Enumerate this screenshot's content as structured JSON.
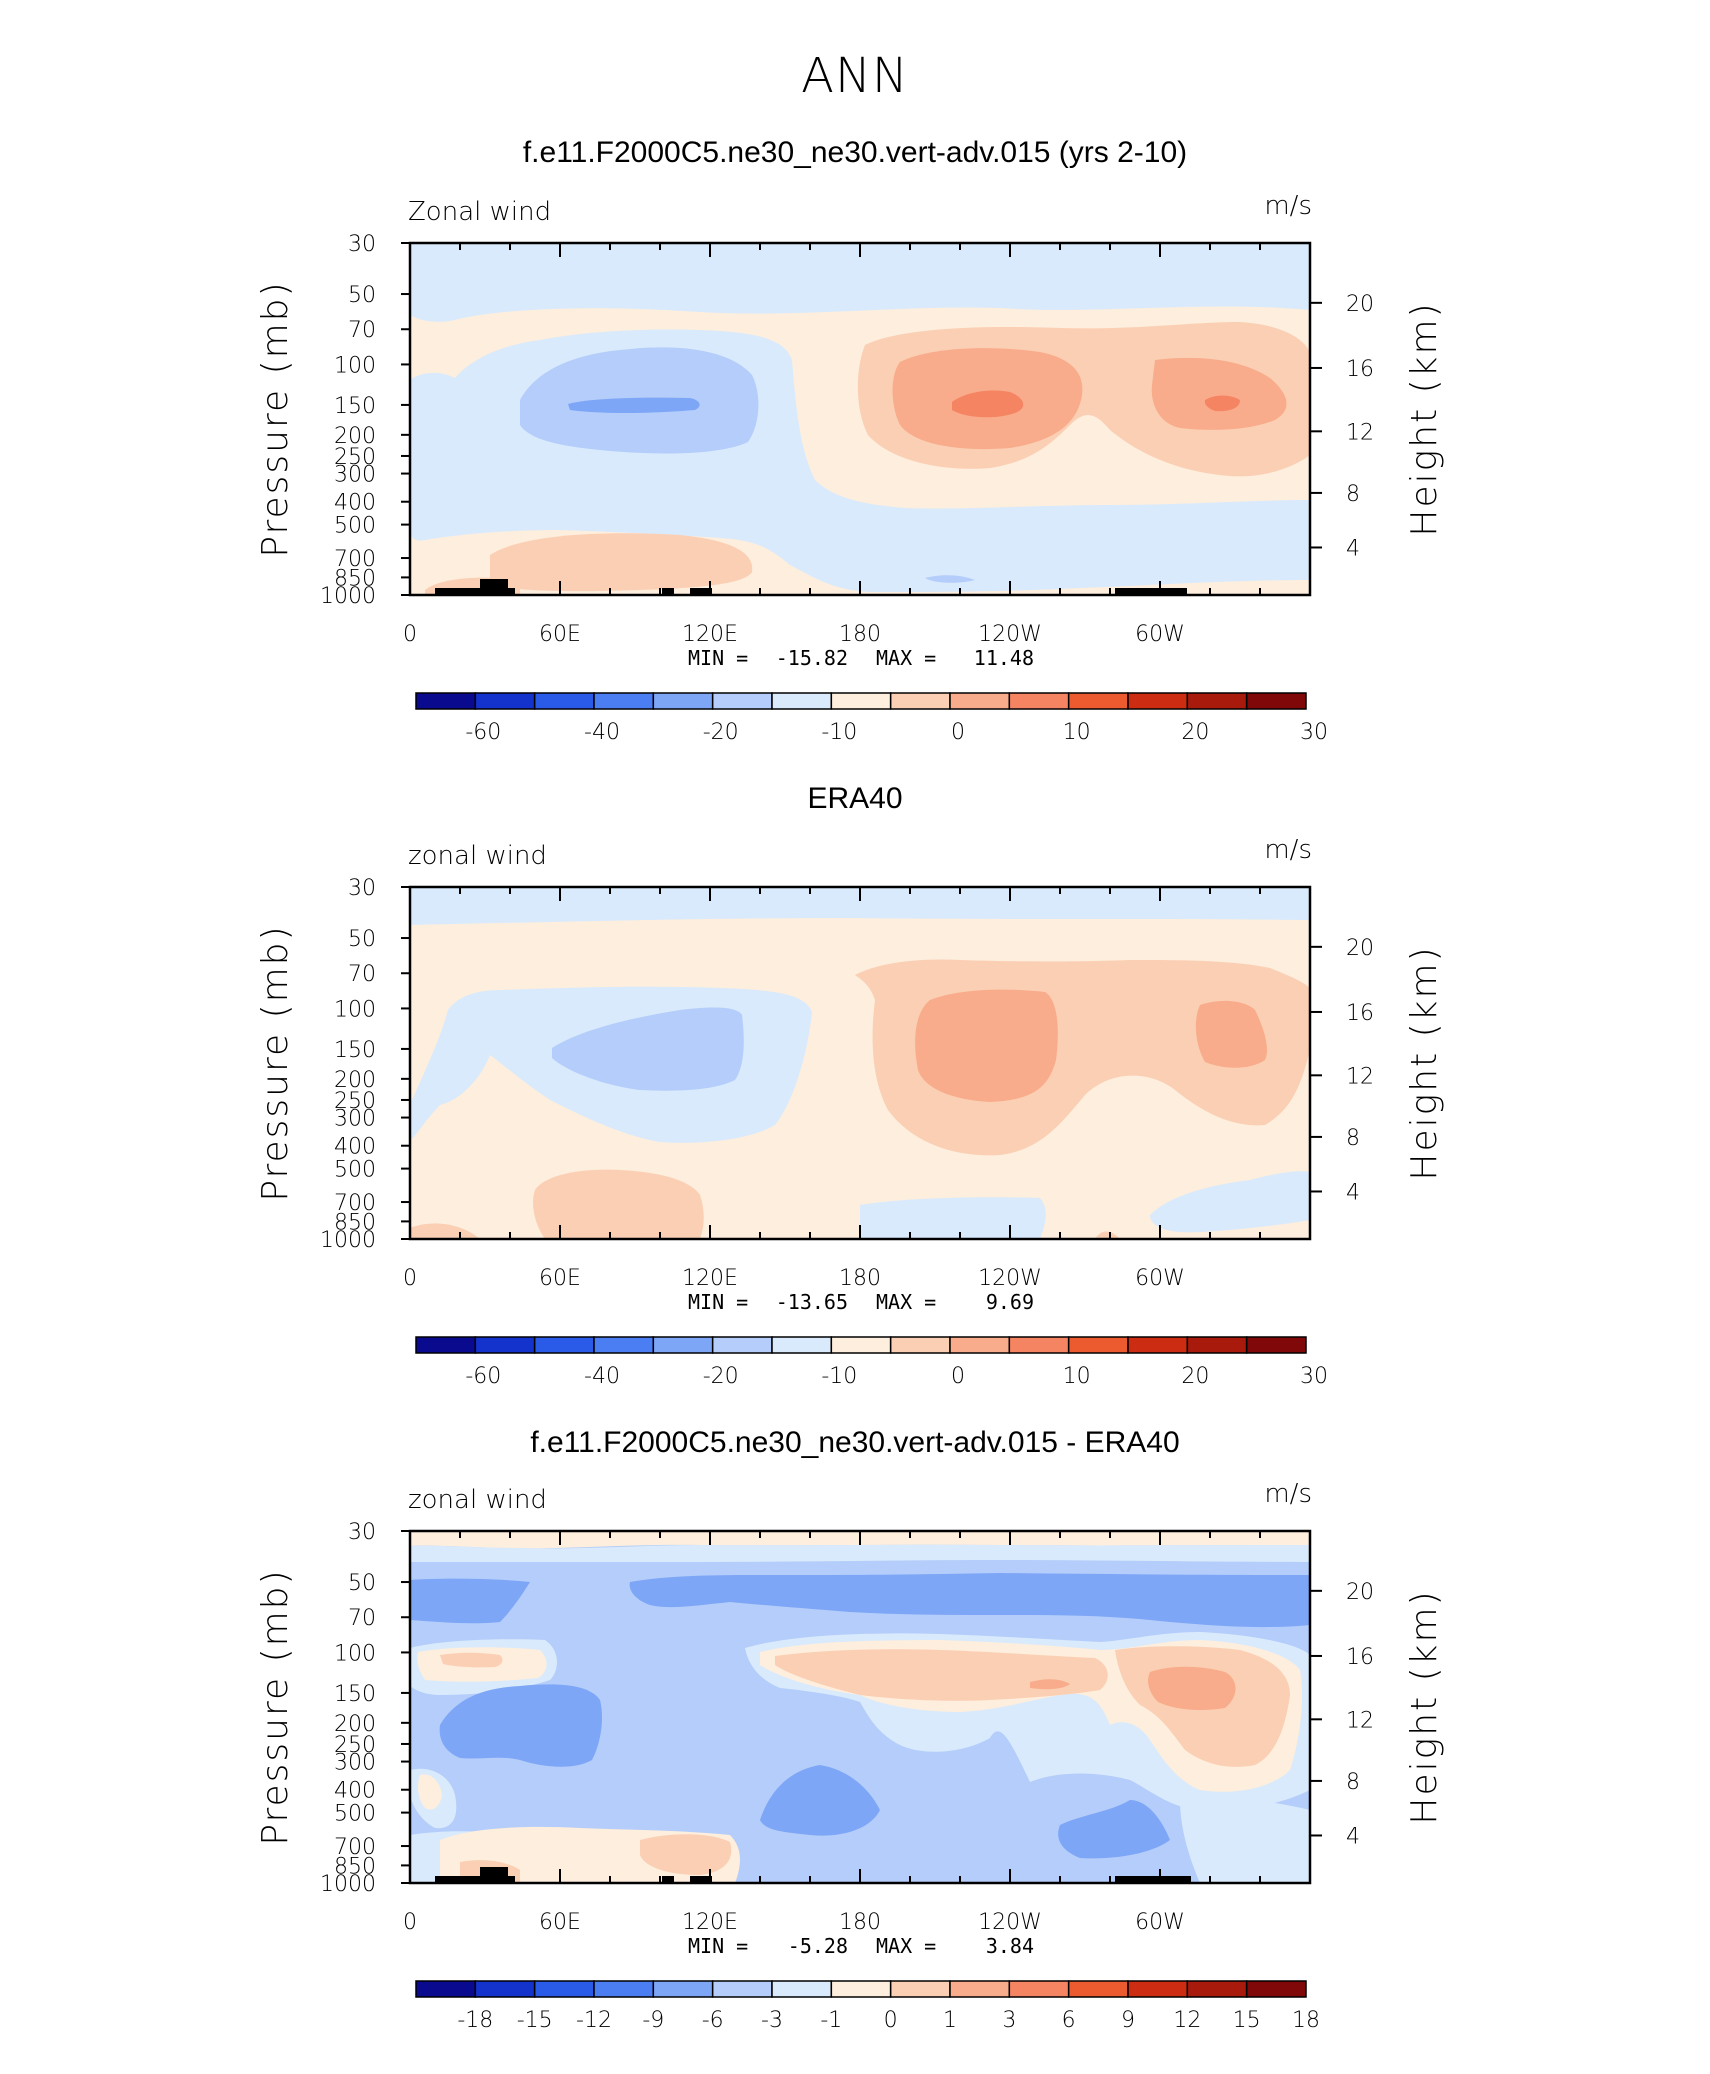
{
  "figure_title": "ANN",
  "chart_data": [
    {
      "type": "heatmap",
      "title": "f.e11.F2000C5.ne30_ne30.vert-adv.015 (yrs 2-10)",
      "left_label": "Zonal wind",
      "right_label": "m/s",
      "xlabel": "",
      "ylabel": "Pressure (mb)",
      "ylabel_right": "Height (km)",
      "x_ticks": [
        "0",
        "60E",
        "120E",
        "180",
        "120W",
        "60W"
      ],
      "y_ticks": [
        "30",
        "50",
        "70",
        "100",
        "150",
        "200",
        "250",
        "300",
        "400",
        "500",
        "700",
        "850",
        "1000"
      ],
      "height_ticks": [
        "20",
        "16",
        "12",
        "8",
        "4"
      ],
      "min_label": "MIN =",
      "min_value": "-15.82",
      "max_label": "MAX =",
      "max_value": "11.48",
      "colorbar_labels": [
        "-60",
        "-40",
        "-20",
        "-10",
        "0",
        "10",
        "20",
        "30"
      ],
      "colorbar_colors": [
        "#0a0a8f",
        "#1432cc",
        "#2a5ae8",
        "#4a7ef2",
        "#7ea6f6",
        "#b4cdfa",
        "#d9eafc",
        "#fdeedd",
        "#fbcfb3",
        "#f8ac8b",
        "#f48462",
        "#ec5a2f",
        "#cc2d12",
        "#a81a0b",
        "#810808"
      ]
    },
    {
      "type": "heatmap",
      "title": "ERA40",
      "left_label": "zonal wind",
      "right_label": "m/s",
      "xlabel": "",
      "ylabel": "Pressure (mb)",
      "ylabel_right": "Height (km)",
      "x_ticks": [
        "0",
        "60E",
        "120E",
        "180",
        "120W",
        "60W"
      ],
      "y_ticks": [
        "30",
        "50",
        "70",
        "100",
        "150",
        "200",
        "250",
        "300",
        "400",
        "500",
        "700",
        "850",
        "1000"
      ],
      "height_ticks": [
        "20",
        "16",
        "12",
        "8",
        "4"
      ],
      "min_label": "MIN =",
      "min_value": "-13.65",
      "max_label": "MAX =",
      "max_value": "9.69",
      "colorbar_labels": [
        "-60",
        "-40",
        "-20",
        "-10",
        "0",
        "10",
        "20",
        "30"
      ],
      "colorbar_colors": [
        "#0a0a8f",
        "#1432cc",
        "#2a5ae8",
        "#4a7ef2",
        "#7ea6f6",
        "#b4cdfa",
        "#d9eafc",
        "#fdeedd",
        "#fbcfb3",
        "#f8ac8b",
        "#f48462",
        "#ec5a2f",
        "#cc2d12",
        "#a81a0b",
        "#810808"
      ]
    },
    {
      "type": "heatmap",
      "title": "f.e11.F2000C5.ne30_ne30.vert-adv.015 - ERA40",
      "left_label": "zonal wind",
      "right_label": "m/s",
      "xlabel": "",
      "ylabel": "Pressure (mb)",
      "ylabel_right": "Height (km)",
      "x_ticks": [
        "0",
        "60E",
        "120E",
        "180",
        "120W",
        "60W"
      ],
      "y_ticks": [
        "30",
        "50",
        "70",
        "100",
        "150",
        "200",
        "250",
        "300",
        "400",
        "500",
        "700",
        "850",
        "1000"
      ],
      "height_ticks": [
        "20",
        "16",
        "12",
        "8",
        "4"
      ],
      "min_label": "MIN =",
      "min_value": "-5.28",
      "max_label": "MAX =",
      "max_value": "3.84",
      "colorbar_labels": [
        "-18",
        "-15",
        "-12",
        "-9",
        "-6",
        "-3",
        "-1",
        "0",
        "1",
        "3",
        "6",
        "9",
        "12",
        "15",
        "18"
      ],
      "colorbar_colors": [
        "#0a0a8f",
        "#1432cc",
        "#2a5ae8",
        "#4a7ef2",
        "#7ea6f6",
        "#b4cdfa",
        "#d9eafc",
        "#fdeedd",
        "#fbcfb3",
        "#f8ac8b",
        "#f48462",
        "#ec5a2f",
        "#cc2d12",
        "#a81a0b",
        "#810808"
      ]
    }
  ]
}
